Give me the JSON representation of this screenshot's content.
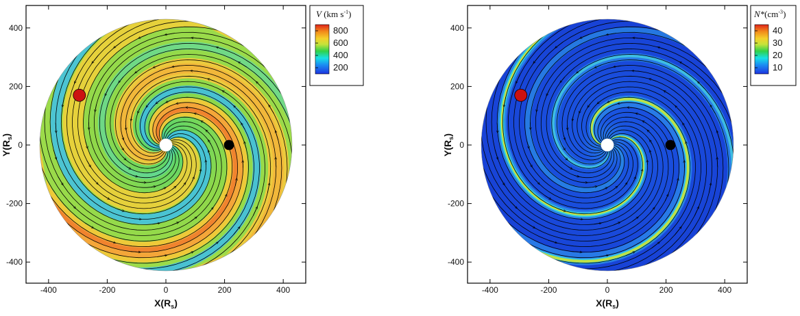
{
  "chart_data": [
    {
      "type": "heatmap",
      "xlabel": "X(R",
      "xlabel_sub": "s",
      "xlabel_end": ")",
      "ylabel": "Y(R",
      "ylabel_sub": "s",
      "ylabel_end": ")",
      "xlim": [
        -470,
        470
      ],
      "ylim": [
        -470,
        470
      ],
      "xticks": [
        -400,
        -200,
        0,
        200,
        400
      ],
      "yticks": [
        -400,
        -200,
        0,
        200,
        400
      ],
      "domain_radius": 430,
      "legend": {
        "title_var": "V",
        "title_unit": " (km s",
        "title_sup": "-1",
        "title_end": ")",
        "ticks": [
          200,
          400,
          600,
          800
        ],
        "range": [
          100,
          900
        ]
      },
      "markers": [
        {
          "name": "red-body",
          "x": -295,
          "y": 170,
          "color": "#cc1111"
        },
        {
          "name": "black-body",
          "x": 215,
          "y": 0,
          "color": "#000000"
        },
        {
          "name": "sun",
          "x": 0,
          "y": 0,
          "color": "#ffffff"
        }
      ]
    },
    {
      "type": "heatmap",
      "xlabel": "X(R",
      "xlabel_sub": "s",
      "xlabel_end": ")",
      "ylabel": "Y(R",
      "ylabel_sub": "s",
      "ylabel_end": ")",
      "xlim": [
        -470,
        470
      ],
      "ylim": [
        -470,
        470
      ],
      "xticks": [
        -400,
        -200,
        0,
        200,
        400
      ],
      "yticks": [
        -400,
        -200,
        0,
        200,
        400
      ],
      "domain_radius": 430,
      "legend": {
        "title_var": "N*",
        "title_unit": "(cm",
        "title_sup": "-3",
        "title_end": ")",
        "ticks": [
          10,
          20,
          30,
          40
        ],
        "range": [
          5,
          45
        ]
      },
      "markers": [
        {
          "name": "red-body",
          "x": -295,
          "y": 170,
          "color": "#cc1111"
        },
        {
          "name": "black-body",
          "x": 215,
          "y": 0,
          "color": "#000000"
        },
        {
          "name": "sun",
          "x": 0,
          "y": 0,
          "color": "#ffffff"
        }
      ]
    }
  ]
}
